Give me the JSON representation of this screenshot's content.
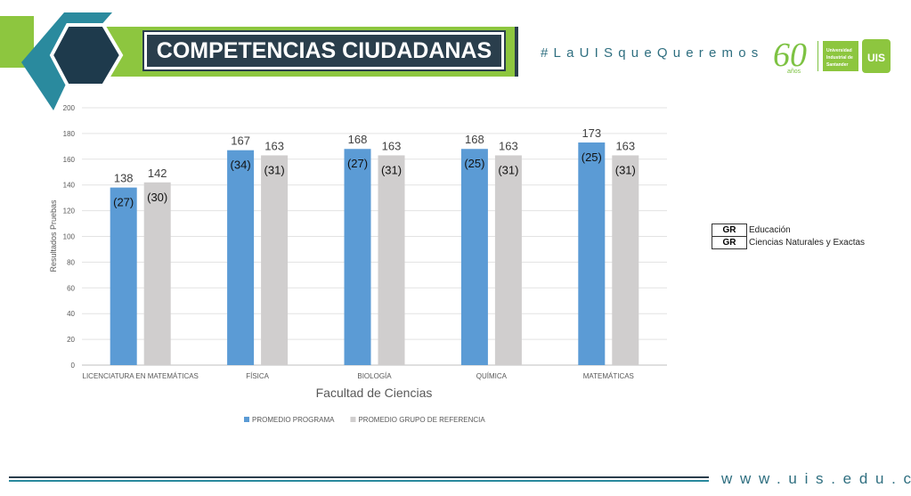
{
  "header": {
    "title": "COMPETENCIAS CIUDADANAS",
    "hashtag": "#LaUISqueQueremos",
    "anniversary": "60",
    "anniversary_sub": "años",
    "university_name": [
      "Universidad",
      "Industrial de",
      "Santander"
    ],
    "university_logo": "UIS",
    "colors": {
      "green": "#8dc63f",
      "teal": "#2a8a9e",
      "navy": "#1e3a4c"
    }
  },
  "footer": {
    "website": "www.uis.edu.co"
  },
  "side_legend": [
    {
      "code": "GR",
      "label": "Educación"
    },
    {
      "code": "GR",
      "label": "Ciencias Naturales y Exactas"
    }
  ],
  "chart_data": {
    "type": "bar",
    "categories": [
      "LICENCIATURA EN MATEMÁTICAS",
      "FÍSICA",
      "BIOLOGÍA",
      "QUÍMICA",
      "MATEMÁTICAS"
    ],
    "series": [
      {
        "name": "PROMEDIO PROGRAMA",
        "color": "#5b9bd5",
        "values": [
          138,
          167,
          168,
          168,
          173
        ],
        "sublabels": [
          "(27)",
          "(34)",
          "(27)",
          "(25)",
          "(25)"
        ]
      },
      {
        "name": "PROMEDIO GRUPO DE REFERENCIA",
        "color": "#d0cece",
        "values": [
          142,
          163,
          163,
          163,
          163
        ],
        "sublabels": [
          "(30)",
          "(31)",
          "(31)",
          "(31)",
          "(31)"
        ]
      }
    ],
    "xlabel": "Facultad de Ciencias",
    "ylabel": "Resultados Pruebas",
    "ylim": [
      0,
      200
    ],
    "yticks": [
      0,
      20,
      40,
      60,
      80,
      100,
      120,
      140,
      160,
      180,
      200
    ],
    "grid": true,
    "legend": "bottom"
  }
}
